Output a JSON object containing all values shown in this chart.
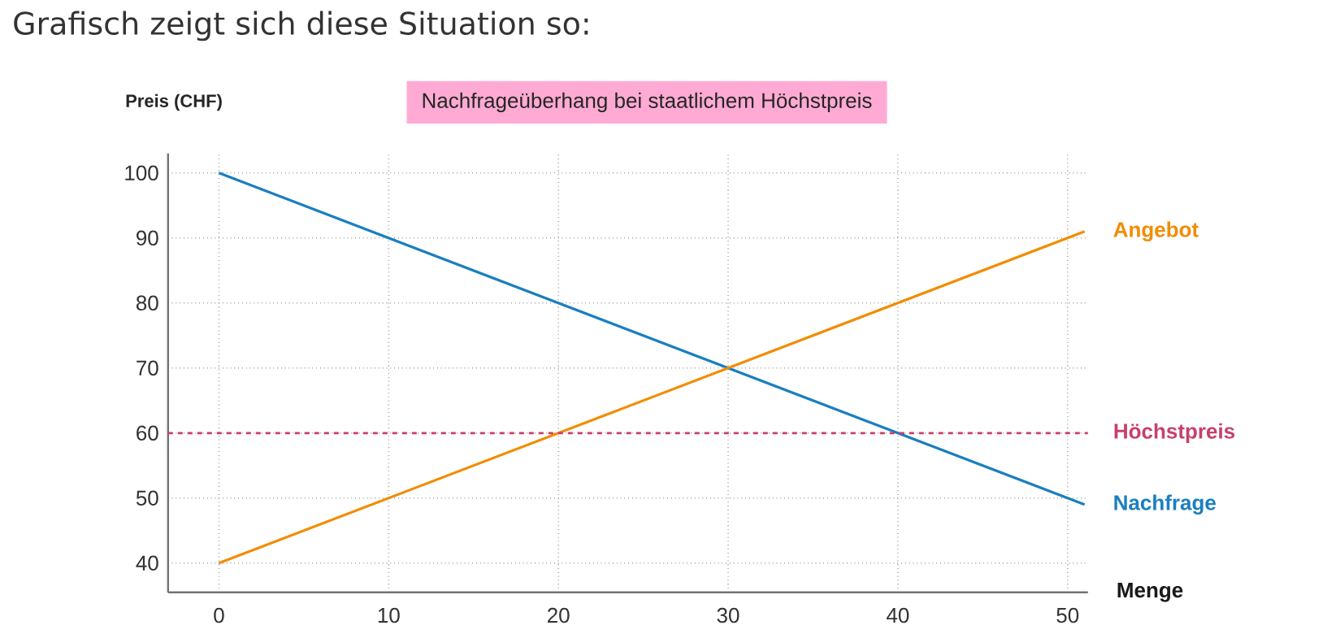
{
  "chart_data": {
    "type": "line",
    "title": "Grafisch zeigt sich diese Situation so:",
    "subtitle": "Nachfrageüberhang bei staatlichem Höchstpreis",
    "xlabel": "Menge",
    "ylabel": "Preis (CHF)",
    "x": [
      0,
      51
    ],
    "series": [
      {
        "name": "Nachfrage",
        "color": "#1a7fbf",
        "values": [
          100,
          49
        ]
      },
      {
        "name": "Angebot",
        "color": "#f28c00",
        "values": [
          40,
          91
        ]
      }
    ],
    "xlim": [
      -3,
      51.2
    ],
    "ylim": [
      35.5,
      103
    ],
    "xticks": [
      0,
      10,
      20,
      30,
      40,
      50
    ],
    "yticks": [
      40,
      50,
      60,
      70,
      80,
      90,
      100
    ],
    "ref_lines": [
      {
        "axis": "y",
        "value": 60,
        "label": "Höchstpreis",
        "color": "#c8406a",
        "line_style": "dashed"
      }
    ],
    "grid": true,
    "marker": "none",
    "line_style": "solid"
  }
}
